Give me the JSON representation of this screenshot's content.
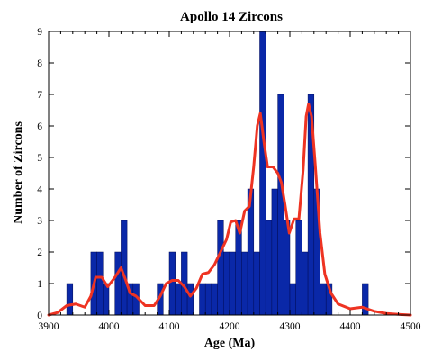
{
  "chart_data": {
    "type": "bar",
    "title": "Apollo 14 Zircons",
    "xlabel": "Age (Ma)",
    "ylabel": "Number of Zircons",
    "xlim": [
      3900,
      4500
    ],
    "ylim": [
      0,
      9
    ],
    "x_ticks": [
      "3900",
      "4000",
      "4100",
      "4200",
      "4300",
      "4400",
      "4500"
    ],
    "y_ticks": [
      "0",
      "1",
      "2",
      "3",
      "4",
      "5",
      "6",
      "7",
      "8",
      "9"
    ],
    "bin_width": 10,
    "grid": false,
    "histogram": {
      "name": "histogram",
      "color": "#0a28a8",
      "bins": [
        {
          "start": 3930,
          "count": 1
        },
        {
          "start": 3970,
          "count": 2
        },
        {
          "start": 3980,
          "count": 2
        },
        {
          "start": 3990,
          "count": 1
        },
        {
          "start": 4010,
          "count": 2
        },
        {
          "start": 4020,
          "count": 3
        },
        {
          "start": 4030,
          "count": 1
        },
        {
          "start": 4040,
          "count": 1
        },
        {
          "start": 4080,
          "count": 1
        },
        {
          "start": 4100,
          "count": 2
        },
        {
          "start": 4110,
          "count": 1
        },
        {
          "start": 4120,
          "count": 2
        },
        {
          "start": 4130,
          "count": 1
        },
        {
          "start": 4150,
          "count": 1
        },
        {
          "start": 4160,
          "count": 1
        },
        {
          "start": 4170,
          "count": 1
        },
        {
          "start": 4180,
          "count": 3
        },
        {
          "start": 4190,
          "count": 2
        },
        {
          "start": 4200,
          "count": 2
        },
        {
          "start": 4210,
          "count": 3
        },
        {
          "start": 4220,
          "count": 2
        },
        {
          "start": 4230,
          "count": 4
        },
        {
          "start": 4240,
          "count": 2
        },
        {
          "start": 4250,
          "count": 9
        },
        {
          "start": 4260,
          "count": 3
        },
        {
          "start": 4270,
          "count": 4
        },
        {
          "start": 4280,
          "count": 7
        },
        {
          "start": 4290,
          "count": 3
        },
        {
          "start": 4300,
          "count": 1
        },
        {
          "start": 4310,
          "count": 3
        },
        {
          "start": 4320,
          "count": 2
        },
        {
          "start": 4330,
          "count": 7
        },
        {
          "start": 4340,
          "count": 4
        },
        {
          "start": 4350,
          "count": 1
        },
        {
          "start": 4360,
          "count": 1
        },
        {
          "start": 4420,
          "count": 1
        }
      ]
    },
    "density_curve": {
      "name": "density",
      "color": "#ee3322",
      "points": [
        [
          3900,
          0
        ],
        [
          3915,
          0.08
        ],
        [
          3930,
          0.3
        ],
        [
          3945,
          0.35
        ],
        [
          3960,
          0.25
        ],
        [
          3970,
          0.6
        ],
        [
          3978,
          1.2
        ],
        [
          3988,
          1.2
        ],
        [
          3998,
          0.9
        ],
        [
          4010,
          1.2
        ],
        [
          4020,
          1.5
        ],
        [
          4028,
          1.1
        ],
        [
          4035,
          0.7
        ],
        [
          4045,
          0.6
        ],
        [
          4060,
          0.3
        ],
        [
          4075,
          0.3
        ],
        [
          4085,
          0.6
        ],
        [
          4095,
          1.0
        ],
        [
          4105,
          1.1
        ],
        [
          4115,
          1.1
        ],
        [
          4125,
          0.9
        ],
        [
          4135,
          0.6
        ],
        [
          4145,
          0.85
        ],
        [
          4155,
          1.3
        ],
        [
          4165,
          1.35
        ],
        [
          4175,
          1.6
        ],
        [
          4185,
          2.0
        ],
        [
          4195,
          2.4
        ],
        [
          4202,
          2.95
        ],
        [
          4210,
          3.0
        ],
        [
          4217,
          2.6
        ],
        [
          4225,
          3.3
        ],
        [
          4233,
          3.45
        ],
        [
          4240,
          4.7
        ],
        [
          4246,
          6.0
        ],
        [
          4251,
          6.4
        ],
        [
          4257,
          5.5
        ],
        [
          4263,
          4.7
        ],
        [
          4272,
          4.7
        ],
        [
          4280,
          4.5
        ],
        [
          4286,
          4.2
        ],
        [
          4292,
          3.5
        ],
        [
          4299,
          2.6
        ],
        [
          4307,
          3.05
        ],
        [
          4315,
          3.05
        ],
        [
          4322,
          4.6
        ],
        [
          4327,
          6.3
        ],
        [
          4331,
          6.7
        ],
        [
          4336,
          6.3
        ],
        [
          4342,
          4.8
        ],
        [
          4350,
          2.6
        ],
        [
          4358,
          1.3
        ],
        [
          4368,
          0.7
        ],
        [
          4380,
          0.35
        ],
        [
          4400,
          0.2
        ],
        [
          4420,
          0.25
        ],
        [
          4440,
          0.12
        ],
        [
          4460,
          0.05
        ],
        [
          4480,
          0.02
        ],
        [
          4500,
          0
        ]
      ]
    }
  }
}
